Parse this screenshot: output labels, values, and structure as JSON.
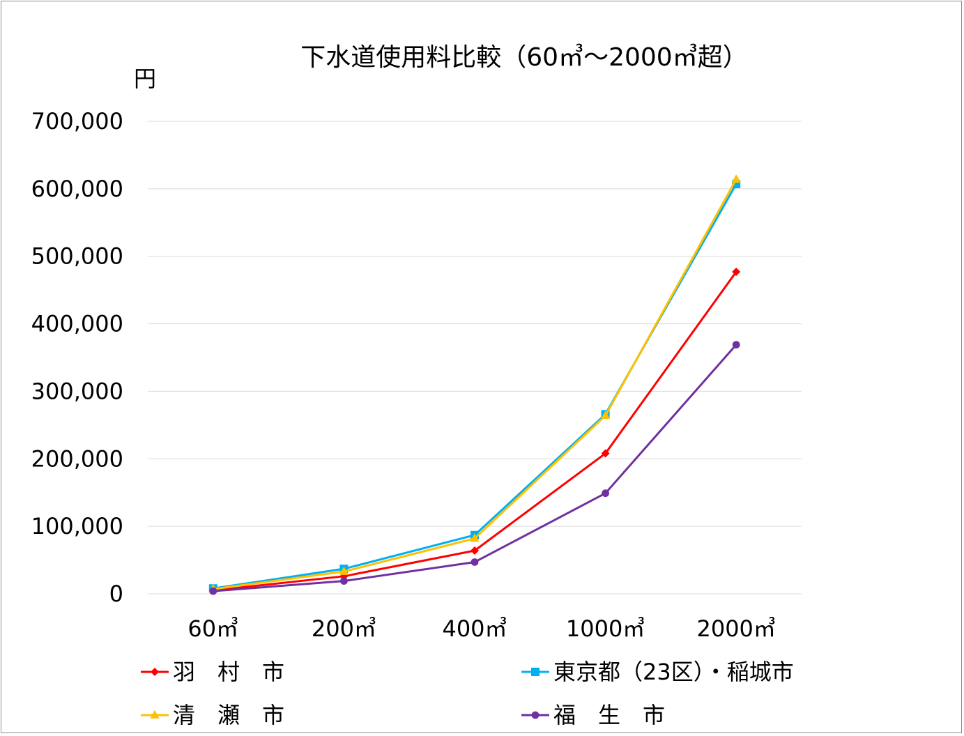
{
  "chart_data": {
    "type": "line",
    "title": "下水道使用料比較（60㎥～2000㎥超）",
    "ylabel": "円",
    "xlabel": "",
    "categories": [
      "60㎥",
      "200㎥",
      "400㎥",
      "1000㎥",
      "2000㎥"
    ],
    "ylim": [
      0,
      700000
    ],
    "yticks": [
      0,
      100000,
      200000,
      300000,
      400000,
      500000,
      600000,
      700000
    ],
    "ytick_labels": [
      "0",
      "100,000",
      "200,000",
      "300,000",
      "400,000",
      "500,000",
      "600,000",
      "700,000"
    ],
    "grid": true,
    "legend_position": "bottom",
    "series": [
      {
        "name": "羽　村　市",
        "color": "#ff0000",
        "marker": "diamond",
        "values": [
          5000,
          26000,
          64000,
          208000,
          477000
        ]
      },
      {
        "name": "東京都（23区）・稲城市",
        "color": "#00b0f0",
        "marker": "square",
        "values": [
          8000,
          37000,
          87000,
          266000,
          607000
        ]
      },
      {
        "name": "清　瀬　市",
        "color": "#ffc000",
        "marker": "triangle",
        "values": [
          7000,
          33000,
          82000,
          264000,
          614000
        ]
      },
      {
        "name": "福　生　市",
        "color": "#7030a0",
        "marker": "circle",
        "values": [
          4000,
          19000,
          47000,
          149000,
          369000
        ]
      }
    ]
  }
}
